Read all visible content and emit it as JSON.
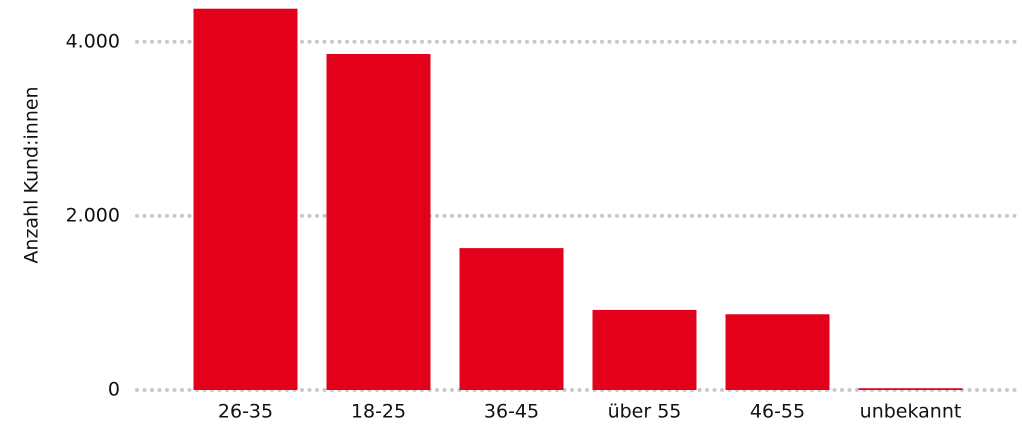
{
  "chart_data": {
    "type": "bar",
    "y_label": "Anzahl Kund:innen",
    "categories": [
      "26-35",
      "18-25",
      "36-45",
      "über 55",
      "46-55",
      "unbekannt"
    ],
    "values": [
      4380,
      3860,
      1630,
      920,
      870,
      20
    ],
    "color": "#e2001a",
    "ylim": [
      0,
      4480
    ],
    "yticks": [
      0,
      {
        "value": 2000,
        "label": "2.000"
      },
      {
        "value": 4000,
        "label": "4.000"
      }
    ],
    "grid": true
  }
}
